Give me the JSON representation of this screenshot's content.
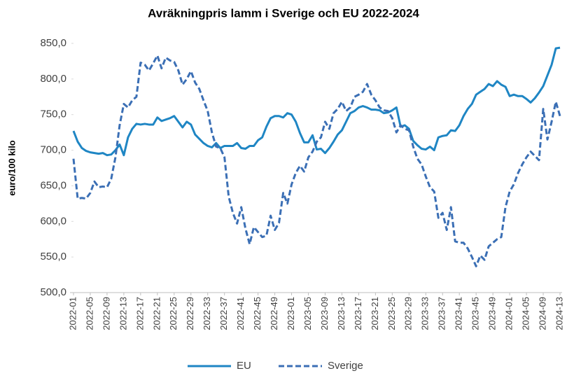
{
  "chart_data": {
    "type": "line",
    "title": "Avräkningpris  lamm  i Sverige och EU 2022-2024",
    "y_label": "euro/100 kilo",
    "categories": [
      "2022-01",
      null,
      null,
      null,
      "2022-05",
      null,
      null,
      null,
      "2022-09",
      null,
      null,
      null,
      "2022-13",
      null,
      null,
      null,
      "2022-17",
      null,
      null,
      null,
      "2022-21",
      null,
      null,
      null,
      "2022-25",
      null,
      null,
      null,
      "2022-29",
      null,
      null,
      null,
      "2022-33",
      null,
      null,
      null,
      "2022-37",
      null,
      null,
      null,
      "2022-41",
      null,
      null,
      null,
      "2022-45",
      null,
      null,
      null,
      "2022-49",
      null,
      null,
      null,
      "2023-01",
      null,
      null,
      null,
      "2023-05",
      null,
      null,
      null,
      "2023-09",
      null,
      null,
      null,
      "2023-13",
      null,
      null,
      null,
      "2023-17",
      null,
      null,
      null,
      "2023-21",
      null,
      null,
      null,
      "2023-25",
      null,
      null,
      null,
      "2023-29",
      null,
      null,
      null,
      "2023-33",
      null,
      null,
      null,
      "2023-37",
      null,
      null,
      null,
      "2023-41",
      null,
      null,
      null,
      "2023-45",
      null,
      null,
      null,
      "2023-49",
      null,
      null,
      null,
      "2024-01",
      null,
      null,
      null,
      "2024-05",
      null,
      null,
      null,
      "2024-09",
      null,
      null,
      null,
      "2024-13"
    ],
    "series": [
      {
        "name": "EU",
        "color": "#1f86c4",
        "dashed": false,
        "values": [
          727,
          712,
          703,
          699,
          697,
          696,
          695,
          696,
          693,
          694,
          700,
          708,
          693,
          718,
          730,
          737,
          736,
          737,
          736,
          736,
          746,
          741,
          743,
          745,
          748,
          740,
          732,
          740,
          736,
          722,
          716,
          710,
          706,
          704,
          710,
          703,
          706,
          706,
          706,
          710,
          703,
          702,
          706,
          706,
          714,
          718,
          733,
          745,
          748,
          748,
          746,
          752,
          750,
          740,
          724,
          711,
          711,
          721,
          701,
          702,
          696,
          703,
          712,
          722,
          728,
          740,
          752,
          755,
          760,
          762,
          760,
          757,
          757,
          756,
          752,
          753,
          756,
          760,
          733,
          735,
          730,
          713,
          707,
          702,
          701,
          705,
          700,
          718,
          720,
          721,
          728,
          727,
          735,
          748,
          758,
          765,
          778,
          782,
          786,
          793,
          790,
          797,
          792,
          789,
          776,
          778,
          776,
          776,
          772,
          767,
          773,
          781,
          790,
          805,
          820,
          843,
          844
        ]
      },
      {
        "name": "Sverige",
        "color": "#3b6fb5",
        "dashed": true,
        "values": [
          688,
          632,
          633,
          632,
          640,
          656,
          648,
          649,
          648,
          660,
          690,
          735,
          765,
          760,
          770,
          775,
          823,
          820,
          812,
          822,
          833,
          815,
          830,
          826,
          824,
          812,
          792,
          800,
          811,
          795,
          786,
          770,
          755,
          725,
          705,
          703,
          690,
          635,
          612,
          597,
          620,
          590,
          568,
          592,
          585,
          578,
          580,
          608,
          588,
          598,
          640,
          625,
          652,
          668,
          678,
          670,
          690,
          698,
          712,
          718,
          740,
          730,
          752,
          758,
          768,
          755,
          760,
          775,
          778,
          782,
          793,
          778,
          770,
          760,
          756,
          755,
          745,
          725,
          735,
          730,
          728,
          705,
          688,
          680,
          663,
          648,
          642,
          605,
          612,
          588,
          620,
          572,
          570,
          570,
          562,
          550,
          537,
          552,
          546,
          565,
          570,
          575,
          578,
          620,
          642,
          652,
          668,
          680,
          690,
          698,
          692,
          686,
          758,
          715,
          740,
          768,
          748
        ]
      }
    ],
    "ylim": [
      500,
      850
    ],
    "yticks": [
      {
        "value": 500,
        "label": "500,0"
      },
      {
        "value": 550,
        "label": "550,0"
      },
      {
        "value": 600,
        "label": "600,0"
      },
      {
        "value": 650,
        "label": "650,0"
      },
      {
        "value": 700,
        "label": "700,0"
      },
      {
        "value": 750,
        "label": "750,0"
      },
      {
        "value": 800,
        "label": "800,0"
      },
      {
        "value": 850,
        "label": "850,0"
      }
    ],
    "grid": false,
    "legend": "bottom"
  }
}
